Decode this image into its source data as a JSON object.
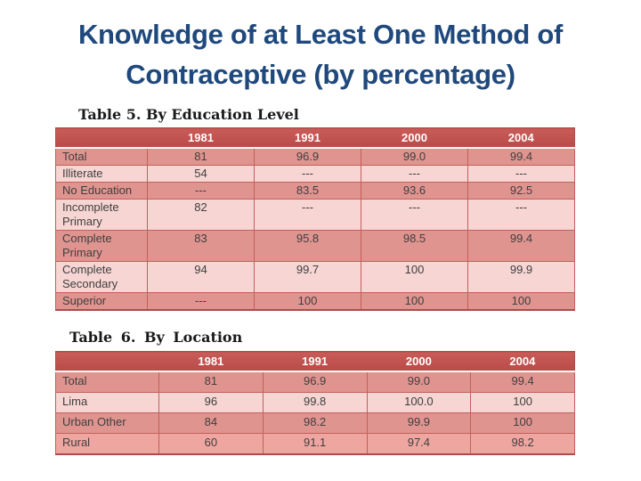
{
  "slide": {
    "title_lines": [
      "Knowledge of at Least One Method of",
      "Contraceptive (by percentage)"
    ]
  },
  "tables": [
    {
      "name": "by-education-level",
      "caption": "Table 5. By Education Level",
      "columns": [
        "",
        "1981",
        "1991",
        "2000",
        "2004"
      ],
      "rows": [
        {
          "label": "Total",
          "values": [
            "81",
            "96.9",
            "99.0",
            "99.4"
          ],
          "band": "dark"
        },
        {
          "label": "Illiterate",
          "values": [
            "54",
            "---",
            "---",
            "---"
          ],
          "band": "light"
        },
        {
          "label": "No Education",
          "values": [
            "---",
            "83.5",
            "93.6",
            "92.5"
          ],
          "band": "dark"
        },
        {
          "label": "Incomplete Primary",
          "values": [
            "82",
            "---",
            "---",
            "---"
          ],
          "band": "light"
        },
        {
          "label": "Complete Primary",
          "values": [
            "83",
            "95.8",
            "98.5",
            "99.4"
          ],
          "band": "dark"
        },
        {
          "label": "Complete Secondary",
          "values": [
            "94",
            "99.7",
            "100",
            "99.9"
          ],
          "band": "light"
        },
        {
          "label": "Superior",
          "values": [
            "---",
            "100",
            "100",
            "100"
          ],
          "band": "dark"
        }
      ]
    },
    {
      "name": "by-location",
      "caption": "Table 6. By Location",
      "columns": [
        "",
        "1981",
        "1991",
        "2000",
        "2004"
      ],
      "rows": [
        {
          "label": "Total",
          "values": [
            "81",
            "96.9",
            "99.0",
            "99.4"
          ],
          "band": "dark"
        },
        {
          "label": "Lima",
          "values": [
            "96",
            "99.8",
            "100.0",
            "100"
          ],
          "band": "light"
        },
        {
          "label": "Urban Other",
          "values": [
            "84",
            "98.2",
            "99.9",
            "100"
          ],
          "band": "dark"
        },
        {
          "label": "Rural",
          "values": [
            "60",
            "91.1",
            "97.4",
            "98.2"
          ],
          "band": "medium"
        }
      ]
    }
  ],
  "colors": {
    "title_blue": "#1F497D",
    "header_bg": "#C0504D",
    "header_red_light": "#C85C58",
    "header_red_dark": "#B94A47",
    "header_text": "#FFFFFF",
    "band_dark": "#E0948F",
    "band_light": "#F6D5D3",
    "band_medium": "#EFA6A1",
    "inner_border": "#C2605C",
    "outer_border": "#AC4D4A",
    "cell_text": "#3F3F3F",
    "caption_text": "#1A1A1A"
  }
}
